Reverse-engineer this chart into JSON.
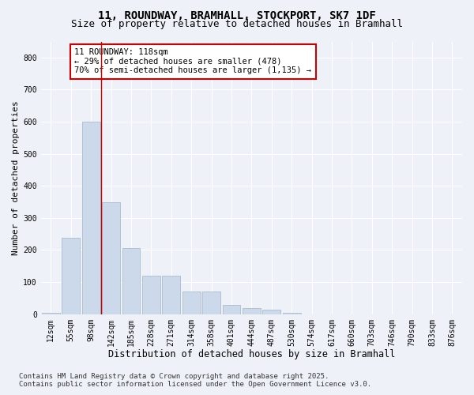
{
  "title_line1": "11, ROUNDWAY, BRAMHALL, STOCKPORT, SK7 1DF",
  "title_line2": "Size of property relative to detached houses in Bramhall",
  "xlabel": "Distribution of detached houses by size in Bramhall",
  "ylabel": "Number of detached properties",
  "categories": [
    "12sqm",
    "55sqm",
    "98sqm",
    "142sqm",
    "185sqm",
    "228sqm",
    "271sqm",
    "314sqm",
    "358sqm",
    "401sqm",
    "444sqm",
    "487sqm",
    "530sqm",
    "574sqm",
    "617sqm",
    "660sqm",
    "703sqm",
    "746sqm",
    "790sqm",
    "833sqm",
    "876sqm"
  ],
  "values": [
    5,
    237,
    600,
    350,
    205,
    120,
    120,
    70,
    70,
    30,
    20,
    15,
    5,
    0,
    0,
    0,
    0,
    0,
    0,
    0,
    0
  ],
  "bar_color": "#ccd9ea",
  "bar_edge_color": "#aabcce",
  "vline_x": 2.5,
  "vline_color": "#cc0000",
  "annotation_text": "11 ROUNDWAY: 118sqm\n← 29% of detached houses are smaller (478)\n70% of semi-detached houses are larger (1,135) →",
  "annotation_box_color": "white",
  "annotation_box_edge_color": "#cc0000",
  "ylim": [
    0,
    850
  ],
  "yticks": [
    0,
    100,
    200,
    300,
    400,
    500,
    600,
    700,
    800
  ],
  "background_color": "#eef2f8",
  "plot_background": "#eef2f8",
  "grid_color": "white",
  "footer_line1": "Contains HM Land Registry data © Crown copyright and database right 2025.",
  "footer_line2": "Contains public sector information licensed under the Open Government Licence v3.0.",
  "title_fontsize": 10,
  "subtitle_fontsize": 9,
  "xlabel_fontsize": 8.5,
  "ylabel_fontsize": 8,
  "tick_fontsize": 7,
  "annotation_fontsize": 7.5,
  "footer_fontsize": 6.5
}
